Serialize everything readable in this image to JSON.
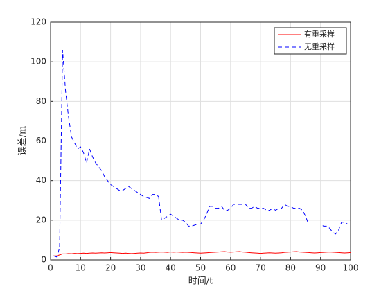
{
  "chart_data": {
    "type": "line",
    "xlabel": "时间/t",
    "ylabel": "误差/m",
    "x": [
      1,
      2,
      3,
      4,
      5,
      6,
      7,
      8,
      9,
      10,
      11,
      12,
      13,
      14,
      15,
      16,
      17,
      18,
      19,
      20,
      21,
      22,
      23,
      24,
      25,
      26,
      27,
      28,
      29,
      30,
      31,
      32,
      33,
      34,
      35,
      36,
      37,
      38,
      39,
      40,
      41,
      42,
      43,
      44,
      45,
      46,
      47,
      48,
      49,
      50,
      51,
      52,
      53,
      54,
      55,
      56,
      57,
      58,
      59,
      60,
      61,
      62,
      63,
      64,
      65,
      66,
      67,
      68,
      69,
      70,
      71,
      72,
      73,
      74,
      75,
      76,
      77,
      78,
      79,
      80,
      81,
      82,
      83,
      84,
      85,
      86,
      87,
      88,
      89,
      90,
      91,
      92,
      93,
      94,
      95,
      96,
      97,
      98,
      99,
      100
    ],
    "series": [
      {
        "name": "有重采样",
        "color": "#ff0000",
        "dash": false,
        "values": [
          2,
          2,
          2.5,
          3,
          3,
          3.2,
          3.1,
          3.3,
          3.2,
          3.3,
          3.4,
          3.3,
          3.4,
          3.5,
          3.4,
          3.5,
          3.6,
          3.5,
          3.6,
          3.7,
          3.6,
          3.5,
          3.4,
          3.3,
          3.4,
          3.3,
          3.2,
          3.3,
          3.4,
          3.5,
          3.4,
          3.6,
          3.8,
          3.9,
          3.8,
          3.9,
          4,
          3.9,
          3.8,
          4,
          3.9,
          4,
          3.9,
          3.8,
          3.9,
          3.8,
          3.7,
          3.6,
          3.5,
          3.4,
          3.5,
          3.6,
          3.7,
          3.8,
          3.9,
          4,
          4.1,
          4.2,
          4,
          3.9,
          4,
          4.1,
          4.2,
          4,
          3.9,
          3.7,
          3.6,
          3.5,
          3.4,
          3.3,
          3.4,
          3.5,
          3.6,
          3.5,
          3.4,
          3.5,
          3.6,
          3.8,
          3.9,
          4,
          4.1,
          4.2,
          4,
          3.9,
          3.8,
          3.7,
          3.6,
          3.5,
          3.6,
          3.7,
          3.8,
          3.9,
          4,
          3.9,
          3.8,
          3.7,
          3.6,
          3.5,
          3.6,
          3.7
        ]
      },
      {
        "name": "无重采样",
        "color": "#0000ff",
        "dash": true,
        "values": [
          2,
          1.5,
          6,
          106,
          85,
          72,
          62,
          59,
          56,
          57,
          54,
          49,
          56,
          52,
          49,
          47,
          45,
          42,
          40,
          38,
          37,
          36,
          35,
          35,
          36,
          37,
          36,
          35,
          34,
          33,
          32,
          31.5,
          31,
          33,
          33,
          32,
          20,
          21,
          22,
          23,
          22,
          21,
          20,
          20,
          19,
          17,
          17,
          17.5,
          18,
          18,
          20,
          23,
          27,
          27,
          26,
          26,
          27,
          25,
          25,
          26,
          28,
          28,
          28,
          28,
          28,
          26,
          26,
          27,
          26,
          26,
          26,
          25,
          25,
          26,
          25,
          26,
          26,
          28,
          27,
          27,
          26,
          26,
          26,
          25,
          22,
          18,
          18,
          18,
          18,
          18,
          17,
          17,
          16,
          14,
          13,
          15,
          19,
          19,
          18,
          18
        ]
      }
    ],
    "xlim": [
      0,
      100
    ],
    "xticks": [
      0,
      10,
      20,
      30,
      40,
      50,
      60,
      70,
      80,
      90,
      100
    ],
    "ylim": [
      0,
      120
    ],
    "yticks": [
      0,
      20,
      40,
      60,
      80,
      100,
      120
    ],
    "grid": true,
    "legend": "top-right"
  }
}
